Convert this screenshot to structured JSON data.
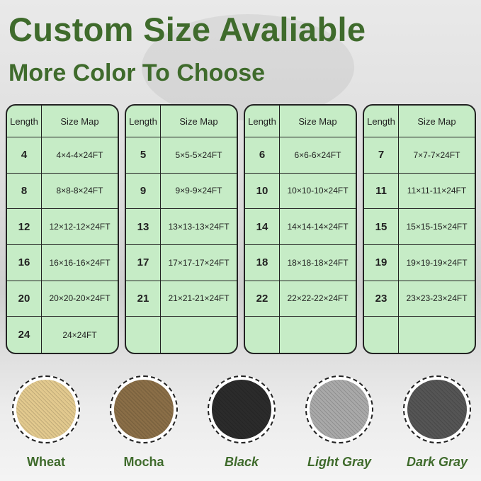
{
  "title": "Custom Size Avaliable",
  "subtitle": "More Color To Choose",
  "table_headers": {
    "length": "Length",
    "size_map": "Size Map"
  },
  "tables": [
    [
      {
        "length": "4",
        "size": "4×4-4×24FT"
      },
      {
        "length": "8",
        "size": "8×8-8×24FT"
      },
      {
        "length": "12",
        "size": "12×12-12×24FT"
      },
      {
        "length": "16",
        "size": "16×16-16×24FT"
      },
      {
        "length": "20",
        "size": "20×20-20×24FT"
      },
      {
        "length": "24",
        "size": "24×24FT"
      }
    ],
    [
      {
        "length": "5",
        "size": "5×5-5×24FT"
      },
      {
        "length": "9",
        "size": "9×9-9×24FT"
      },
      {
        "length": "13",
        "size": "13×13-13×24FT"
      },
      {
        "length": "17",
        "size": "17×17-17×24FT"
      },
      {
        "length": "21",
        "size": "21×21-21×24FT"
      },
      {
        "length": "",
        "size": ""
      }
    ],
    [
      {
        "length": "6",
        "size": "6×6-6×24FT"
      },
      {
        "length": "10",
        "size": "10×10-10×24FT"
      },
      {
        "length": "14",
        "size": "14×14-14×24FT"
      },
      {
        "length": "18",
        "size": "18×18-18×24FT"
      },
      {
        "length": "22",
        "size": "22×22-22×24FT"
      },
      {
        "length": "",
        "size": ""
      }
    ],
    [
      {
        "length": "7",
        "size": "7×7-7×24FT"
      },
      {
        "length": "11",
        "size": "11×11-11×24FT"
      },
      {
        "length": "15",
        "size": "15×15-15×24FT"
      },
      {
        "length": "19",
        "size": "19×19-19×24FT"
      },
      {
        "length": "23",
        "size": "23×23-23×24FT"
      },
      {
        "length": "",
        "size": ""
      }
    ]
  ],
  "colors": [
    {
      "label": "Wheat",
      "swatch": "#e2c98e",
      "italic": false
    },
    {
      "label": "Mocha",
      "swatch": "#8a6e47",
      "italic": false
    },
    {
      "label": "Black",
      "swatch": "#2b2b2b",
      "italic": true
    },
    {
      "label": "Light Gray",
      "swatch": "#a9a9a9",
      "italic": true
    },
    {
      "label": "Dark Gray",
      "swatch": "#555555",
      "italic": true
    }
  ],
  "accent_color": "#3f6b2c",
  "table_bg": "#c6ecc6"
}
